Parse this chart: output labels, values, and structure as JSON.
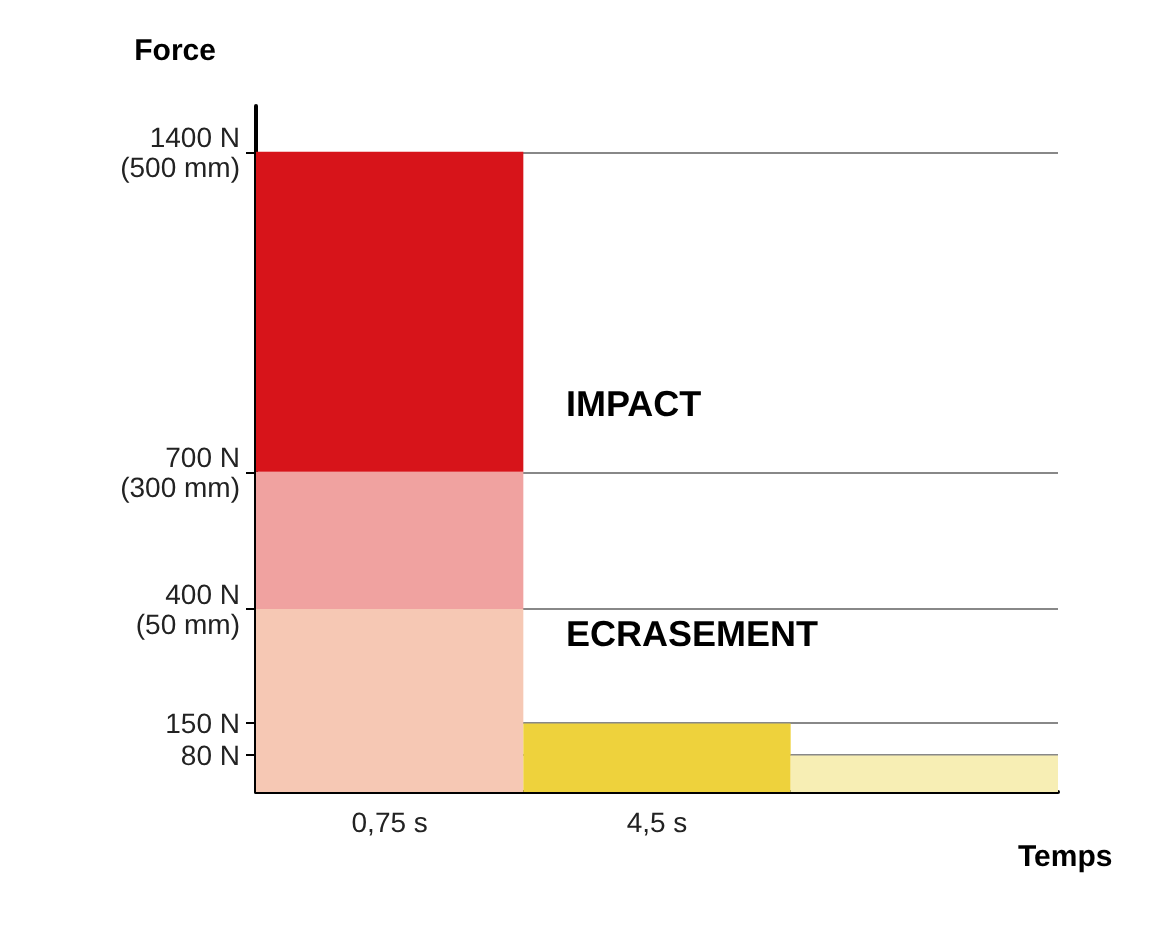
{
  "chart_data": {
    "type": "bar",
    "stacked": true,
    "xlabel": "Temps",
    "ylabel": "Force",
    "categories": [
      "0,75 s",
      "4,5 s",
      null
    ],
    "series": [
      {
        "values": [
          400,
          150,
          80
        ],
        "colors": [
          "#f6c8b4",
          "#eed23c",
          "#f7eeb4"
        ]
      },
      {
        "values": [
          300,
          null,
          null
        ],
        "color": "#f0a2a0"
      },
      {
        "values": [
          700,
          null,
          null
        ],
        "color": "#d7141a"
      }
    ],
    "ylim": [
      0,
      1500
    ],
    "yticks": [
      {
        "value": 80,
        "label": "80 N"
      },
      {
        "value": 150,
        "label": "150 N"
      },
      {
        "value": 400,
        "label": "400 N\n(50 mm)"
      },
      {
        "value": 700,
        "label": "700 N\n(300 mm)"
      },
      {
        "value": 1400,
        "label": "1400 N\n(500 mm)"
      }
    ],
    "grid": "y",
    "annotations": [
      "IMPACT",
      "ECRASEMENT"
    ]
  }
}
